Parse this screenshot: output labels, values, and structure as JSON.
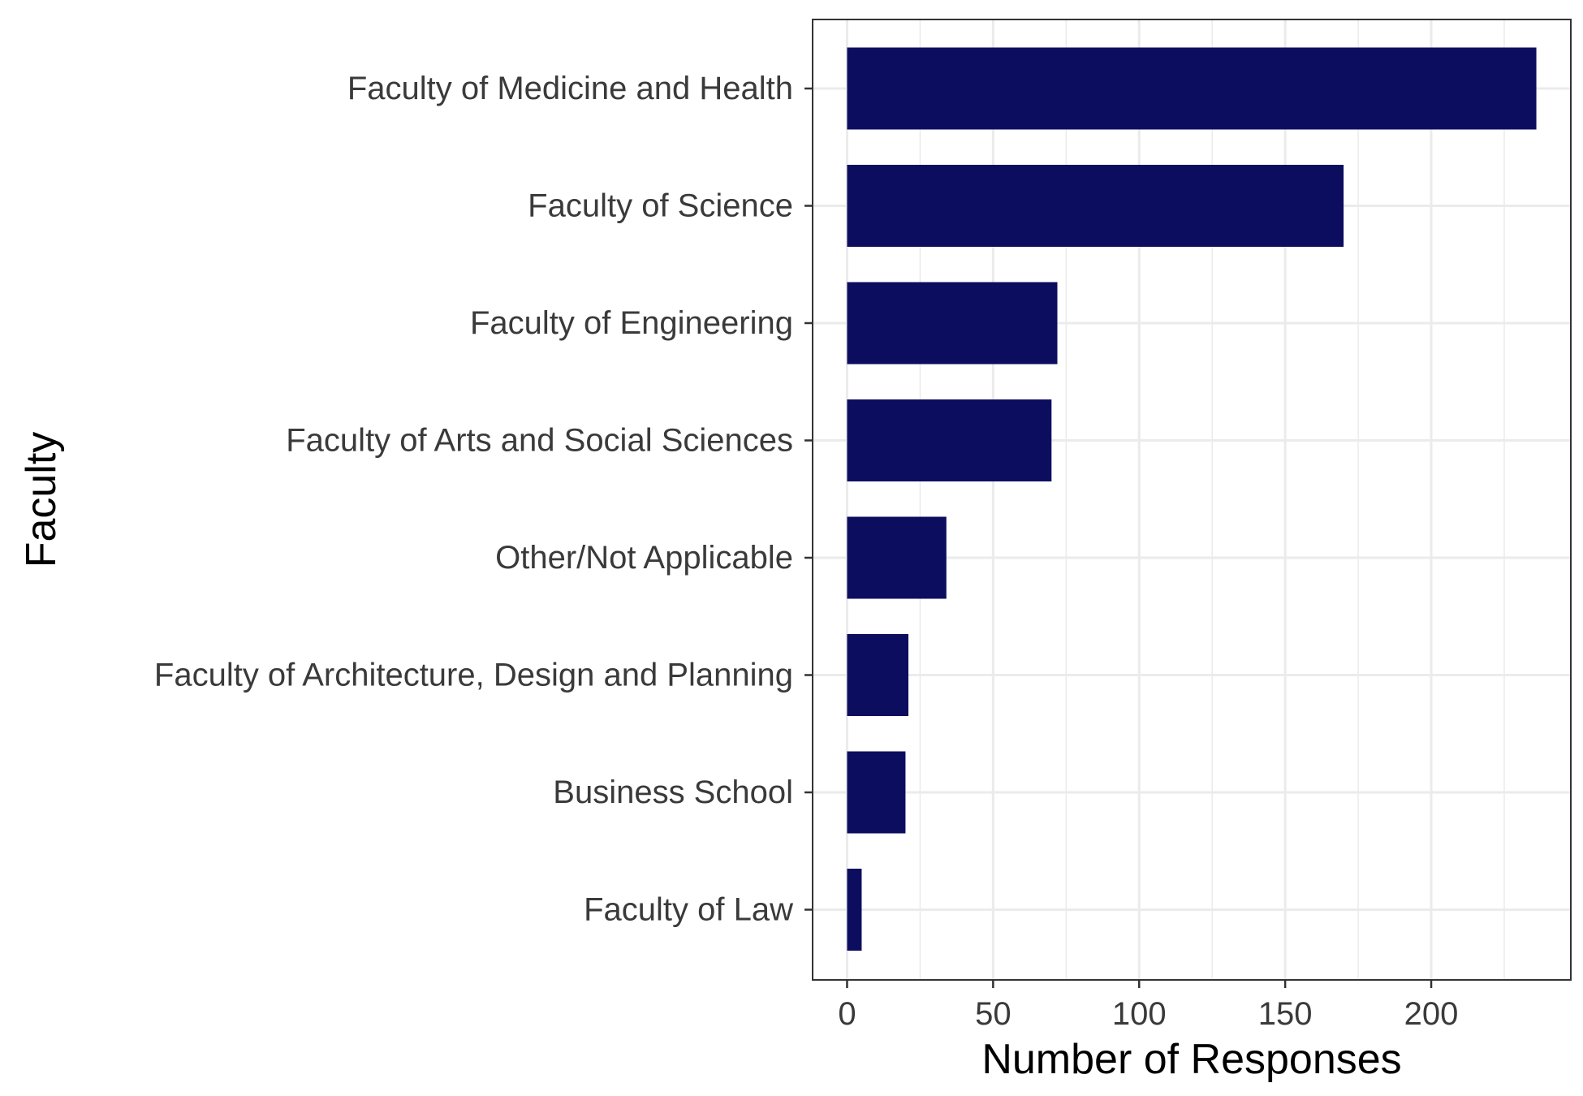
{
  "chart_data": {
    "type": "bar",
    "orientation": "horizontal",
    "title": "",
    "xlabel": "Number of Responses",
    "ylabel": "Faculty",
    "categories": [
      "Faculty of Medicine and Health",
      "Faculty of Science",
      "Faculty of Engineering",
      "Faculty of Arts and Social Sciences",
      "Other/Not Applicable",
      "Faculty of Architecture, Design and Planning",
      "Business School",
      "Faculty of Law"
    ],
    "values": [
      236,
      170,
      72,
      70,
      34,
      21,
      20,
      5
    ],
    "xlim": [
      -11.8,
      247.8
    ],
    "xticks": [
      0,
      50,
      100,
      150,
      200
    ],
    "xtick_labels": [
      "0",
      "50",
      "100",
      "150",
      "200"
    ],
    "grid": true,
    "legend": "none",
    "colors": {
      "bar": "#0d0d60",
      "grid": "#ebebeb",
      "panel_border": "#333333",
      "tick_text": "#3a3a3a",
      "axis_title": "#000000"
    }
  }
}
